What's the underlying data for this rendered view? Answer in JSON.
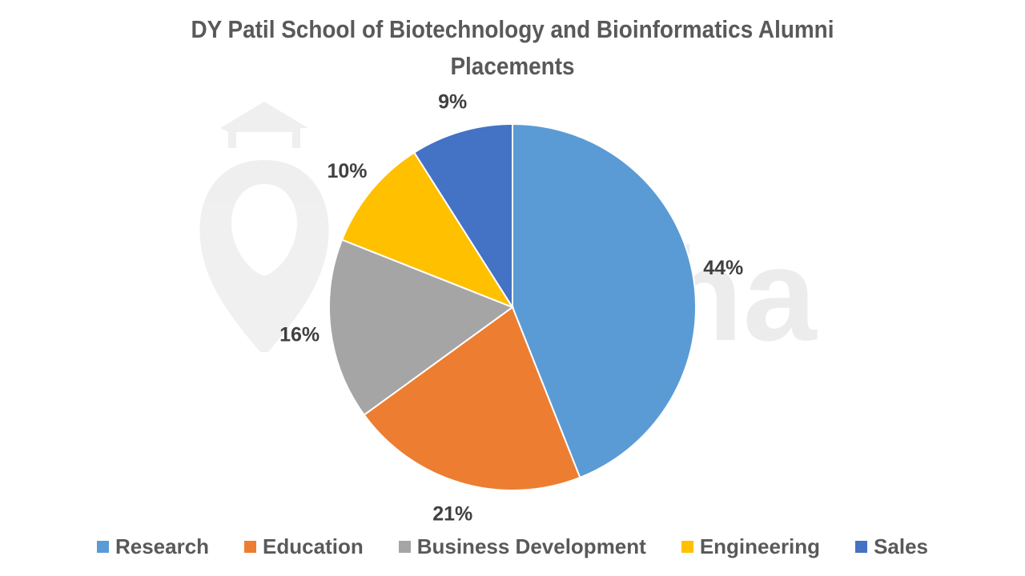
{
  "title": "DY Patil School of Biotechnology and Bioinformatics Alumni Placements",
  "title_lines": [
    "DY Patil School of Biotechnology and Bioinformatics Alumni",
    "Placements"
  ],
  "watermark": "shiksha",
  "chart_data": {
    "type": "pie",
    "title": "DY Patil School of Biotechnology and Bioinformatics Alumni Placements",
    "categories": [
      "Research",
      "Education",
      "Business Development",
      "Engineering",
      "Sales"
    ],
    "values": [
      44,
      21,
      16,
      10,
      9
    ],
    "labels": [
      "44%",
      "21%",
      "16%",
      "10%",
      "9%"
    ],
    "colors": [
      "#5B9BD5",
      "#ED7D31",
      "#A5A5A5",
      "#FFC000",
      "#4472C4"
    ],
    "start_angle": "12 o'clock, clockwise",
    "legend_position": "bottom"
  },
  "legend": [
    {
      "label": "Research",
      "color": "#5B9BD5"
    },
    {
      "label": "Education",
      "color": "#ED7D31"
    },
    {
      "label": "Business Development",
      "color": "#A5A5A5"
    },
    {
      "label": "Engineering",
      "color": "#FFC000"
    },
    {
      "label": "Sales",
      "color": "#4472C4"
    }
  ]
}
